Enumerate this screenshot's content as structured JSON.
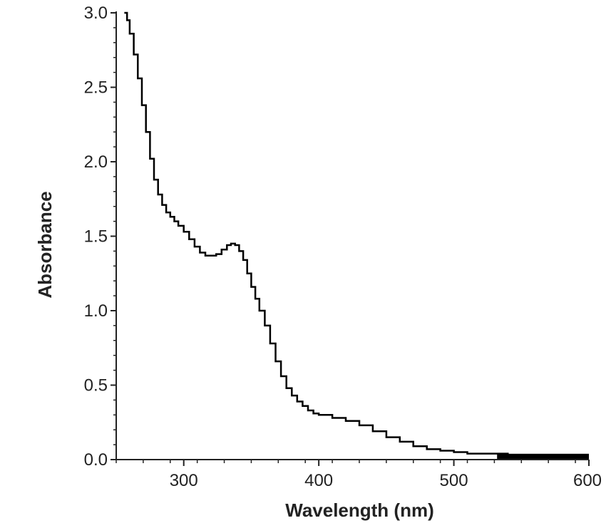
{
  "chart_data": {
    "type": "line",
    "title": "",
    "xlabel": "Wavelength (nm)",
    "ylabel": "Absorbance",
    "xlim": [
      250,
      600
    ],
    "ylim": [
      0.0,
      3.0
    ],
    "x_ticks": [
      300,
      400,
      500,
      600
    ],
    "x_tick_labels": [
      "300",
      "400",
      "500",
      "600"
    ],
    "y_ticks": [
      0.0,
      0.5,
      1.0,
      1.5,
      2.0,
      2.5,
      3.0
    ],
    "y_tick_labels": [
      "0.0",
      "0.5",
      "1.0",
      "1.5",
      "2.0",
      "2.5",
      "3.0"
    ],
    "grid": false,
    "legend": "none",
    "colors": {
      "line": "#000000",
      "axis": "#222222"
    },
    "series": [
      {
        "x": [
          256,
          258,
          260,
          263,
          266,
          269,
          272,
          275,
          278,
          281,
          284,
          287,
          290,
          293,
          296,
          300,
          304,
          308,
          312,
          316,
          320,
          324,
          328,
          332,
          335,
          338,
          341,
          344,
          347,
          350,
          353,
          356,
          360,
          364,
          368,
          372,
          376,
          380,
          384,
          388,
          392,
          396,
          400,
          410,
          420,
          430,
          440,
          450,
          460,
          470,
          480,
          490,
          500,
          510,
          520,
          530,
          540,
          550,
          560,
          570,
          580,
          590,
          600
        ],
        "y": [
          3.0,
          2.95,
          2.86,
          2.72,
          2.56,
          2.38,
          2.2,
          2.02,
          1.88,
          1.78,
          1.71,
          1.66,
          1.63,
          1.6,
          1.57,
          1.53,
          1.48,
          1.43,
          1.39,
          1.37,
          1.37,
          1.38,
          1.41,
          1.44,
          1.45,
          1.44,
          1.4,
          1.34,
          1.25,
          1.16,
          1.08,
          1.0,
          0.9,
          0.78,
          0.66,
          0.56,
          0.48,
          0.43,
          0.39,
          0.36,
          0.33,
          0.31,
          0.3,
          0.28,
          0.26,
          0.23,
          0.19,
          0.15,
          0.12,
          0.09,
          0.07,
          0.06,
          0.05,
          0.04,
          0.04,
          0.04,
          0.03,
          0.03,
          0.03,
          0.02,
          0.02,
          0.02,
          0.02
        ]
      }
    ]
  }
}
